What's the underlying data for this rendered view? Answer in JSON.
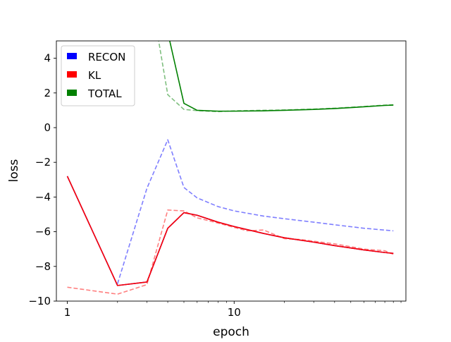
{
  "chart_data": {
    "type": "line",
    "xlabel": "epoch",
    "ylabel": "loss",
    "xscale": "log",
    "xlim": [
      0.86,
      107
    ],
    "ylim": [
      -10,
      5
    ],
    "xticks": [
      {
        "value": 1,
        "label": "1"
      },
      {
        "value": 10,
        "label": "10"
      }
    ],
    "yticks": [
      {
        "value": -10,
        "label": "−10"
      },
      {
        "value": -8,
        "label": "−8"
      },
      {
        "value": -6,
        "label": "−6"
      },
      {
        "value": -4,
        "label": "−4"
      },
      {
        "value": -2,
        "label": "−2"
      },
      {
        "value": 0,
        "label": "0"
      },
      {
        "value": 2,
        "label": "2"
      },
      {
        "value": 4,
        "label": "4"
      }
    ],
    "grid": false,
    "legend": {
      "placement": "top-left",
      "entries": [
        {
          "label": "RECON",
          "color": "#0000ff"
        },
        {
          "label": "KL",
          "color": "#ff0000"
        },
        {
          "label": "TOTAL",
          "color": "#008000"
        }
      ]
    },
    "series": [
      {
        "name": "RECON",
        "color": "#0000ff",
        "style": "solid",
        "points": [
          [
            1,
            -2.8
          ],
          [
            2,
            -9.1
          ],
          [
            3,
            -8.9
          ],
          [
            4,
            -5.8
          ],
          [
            5,
            -4.9
          ],
          [
            6,
            -5.05
          ],
          [
            8,
            -5.45
          ],
          [
            10,
            -5.7
          ],
          [
            15,
            -6.1
          ],
          [
            20,
            -6.35
          ],
          [
            30,
            -6.6
          ],
          [
            40,
            -6.8
          ],
          [
            60,
            -7.05
          ],
          [
            80,
            -7.2
          ],
          [
            90,
            -7.25
          ]
        ]
      },
      {
        "name": "KL",
        "color": "#ff0000",
        "style": "solid",
        "points": [
          [
            1,
            -2.8
          ],
          [
            2,
            -9.1
          ],
          [
            3,
            -8.9
          ],
          [
            4,
            -5.8
          ],
          [
            5,
            -4.9
          ],
          [
            6,
            -5.05
          ],
          [
            8,
            -5.45
          ],
          [
            10,
            -5.7
          ],
          [
            15,
            -6.1
          ],
          [
            20,
            -6.35
          ],
          [
            30,
            -6.6
          ],
          [
            40,
            -6.8
          ],
          [
            60,
            -7.05
          ],
          [
            80,
            -7.2
          ],
          [
            90,
            -7.25
          ]
        ]
      },
      {
        "name": "TOTAL",
        "color": "#008000",
        "style": "solid",
        "points": [
          [
            4,
            5.5
          ],
          [
            5,
            1.4
          ],
          [
            6,
            1.0
          ],
          [
            8,
            0.95
          ],
          [
            10,
            0.95
          ],
          [
            15,
            0.97
          ],
          [
            20,
            1.0
          ],
          [
            30,
            1.05
          ],
          [
            40,
            1.1
          ],
          [
            60,
            1.2
          ],
          [
            80,
            1.28
          ],
          [
            90,
            1.3
          ]
        ]
      },
      {
        "color": "#0000ff",
        "style": "dashed",
        "points": [
          [
            2,
            -9.0
          ],
          [
            3,
            -3.5
          ],
          [
            4,
            -0.7
          ],
          [
            5,
            -3.45
          ],
          [
            6,
            -4.05
          ],
          [
            8,
            -4.55
          ],
          [
            10,
            -4.8
          ],
          [
            15,
            -5.1
          ],
          [
            20,
            -5.25
          ],
          [
            30,
            -5.45
          ],
          [
            40,
            -5.6
          ],
          [
            60,
            -5.8
          ],
          [
            90,
            -5.95
          ]
        ]
      },
      {
        "color": "#ff0000",
        "style": "dashed",
        "points": [
          [
            1,
            -9.2
          ],
          [
            2,
            -9.6
          ],
          [
            3,
            -9.05
          ],
          [
            4,
            -4.75
          ],
          [
            5,
            -4.8
          ],
          [
            6,
            -5.2
          ],
          [
            8,
            -5.5
          ],
          [
            10,
            -5.75
          ],
          [
            12,
            -5.95
          ],
          [
            15,
            -5.9
          ],
          [
            20,
            -6.4
          ],
          [
            25,
            -6.45
          ],
          [
            30,
            -6.55
          ],
          [
            40,
            -6.7
          ],
          [
            60,
            -7.0
          ],
          [
            80,
            -7.1
          ],
          [
            90,
            -7.3
          ]
        ]
      },
      {
        "color": "#008000",
        "style": "dashed",
        "points": [
          [
            3.5,
            5.2
          ],
          [
            4,
            1.9
          ],
          [
            5,
            1.05
          ],
          [
            6,
            0.98
          ],
          [
            8,
            0.92
          ],
          [
            10,
            0.97
          ],
          [
            15,
            1.0
          ],
          [
            20,
            1.02
          ],
          [
            30,
            1.07
          ],
          [
            40,
            1.12
          ],
          [
            60,
            1.22
          ],
          [
            80,
            1.3
          ],
          [
            90,
            1.32
          ]
        ]
      }
    ]
  }
}
